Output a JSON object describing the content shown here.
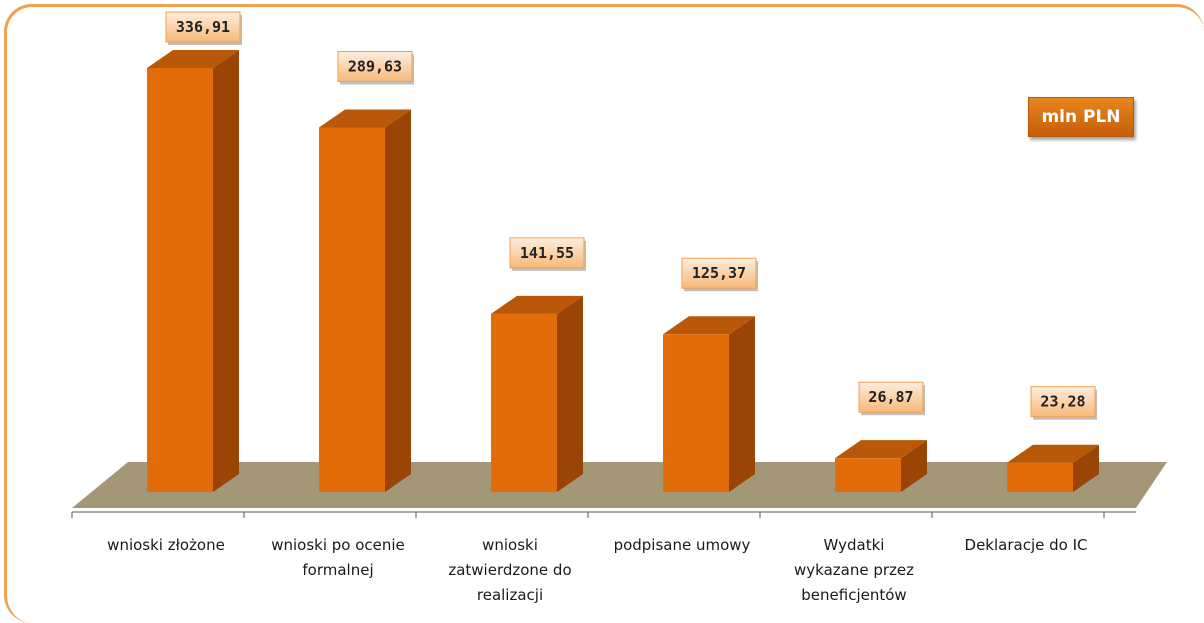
{
  "unit_label": "mln PLN",
  "colors": {
    "bar_front": "#e26c0a",
    "bar_side": "#9a4506",
    "bar_top": "#b85808",
    "floor": "#a39777",
    "label_bg_start": "#fde8d4",
    "label_bg_end": "#f9c08a",
    "frame": "#f0a050"
  },
  "chart_data": {
    "type": "bar",
    "categories": [
      "wnioski złożone",
      "wnioski po ocenie formalnej",
      "wnioski zatwierdzone do realizacji",
      "podpisane umowy",
      "Wydatki wykazane przez beneficjentów",
      "Deklaracje do IC"
    ],
    "values": [
      336.91,
      289.63,
      141.55,
      125.37,
      26.87,
      23.28
    ],
    "data_labels": [
      "336,91",
      "289,63",
      "141,55",
      "125,37",
      "26,87",
      "23,28"
    ],
    "category_lines": [
      [
        "wnioski złożone"
      ],
      [
        "wnioski po ocenie",
        "formalnej"
      ],
      [
        "wnioski",
        "zatwierdzone do",
        "realizacji"
      ],
      [
        "podpisane umowy"
      ],
      [
        "Wydatki",
        "wykazane przez",
        "beneficjentów"
      ],
      [
        "Deklaracje do IC"
      ]
    ],
    "title": "",
    "xlabel": "",
    "ylabel": "",
    "grid": false,
    "legend": "none"
  }
}
